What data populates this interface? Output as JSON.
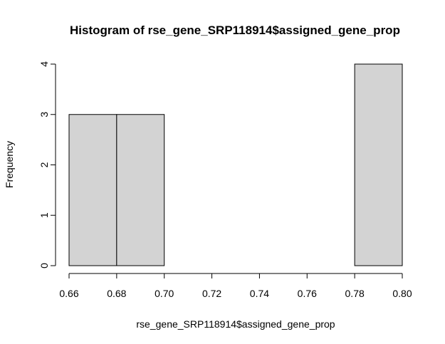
{
  "chart_data": {
    "type": "bar",
    "subtype": "histogram",
    "title": "Histogram of rse_gene_SRP118914$assigned_gene_prop",
    "xlabel": "rse_gene_SRP118914$assigned_gene_prop",
    "ylabel": "Frequency",
    "bins": [
      {
        "start": 0.66,
        "end": 0.68,
        "count": 3
      },
      {
        "start": 0.68,
        "end": 0.7,
        "count": 3
      },
      {
        "start": 0.7,
        "end": 0.72,
        "count": 0
      },
      {
        "start": 0.72,
        "end": 0.74,
        "count": 0
      },
      {
        "start": 0.74,
        "end": 0.76,
        "count": 0
      },
      {
        "start": 0.76,
        "end": 0.78,
        "count": 0
      },
      {
        "start": 0.78,
        "end": 0.8,
        "count": 4
      }
    ],
    "x_ticks": [
      "0.66",
      "0.68",
      "0.70",
      "0.72",
      "0.74",
      "0.76",
      "0.78",
      "0.80"
    ],
    "y_ticks": [
      "0",
      "1",
      "2",
      "3",
      "4"
    ],
    "xlim": [
      0.66,
      0.8
    ],
    "ylim": [
      0,
      4
    ],
    "bar_fill": "#d3d3d3",
    "bar_stroke": "#000000",
    "grid": false,
    "legend": "none"
  }
}
